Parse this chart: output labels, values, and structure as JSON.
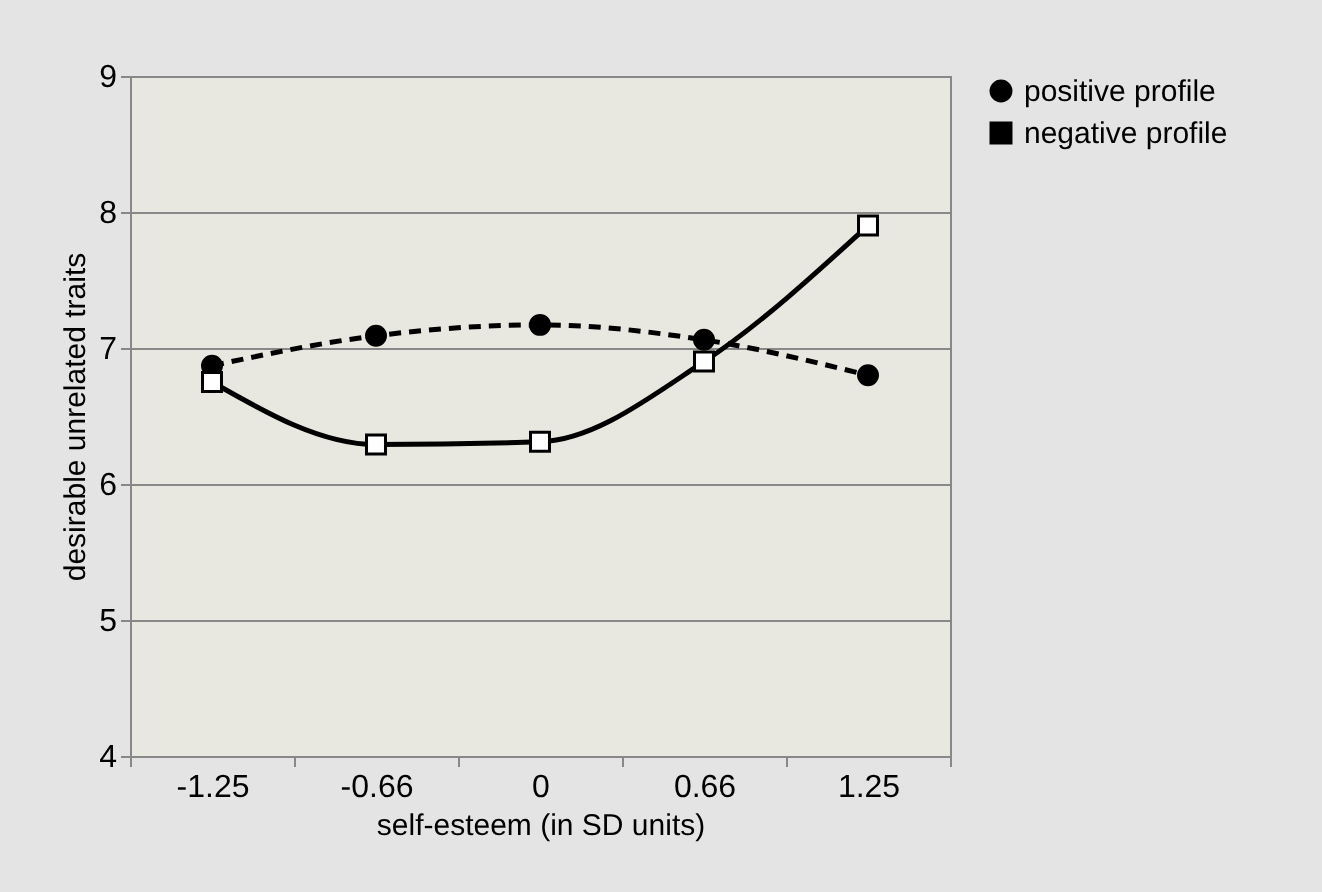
{
  "chart_data": {
    "type": "line",
    "xlabel": "self-esteem (in SD units)",
    "ylabel": "desirable unrelated traits",
    "categories": [
      "-1.25",
      "-0.66",
      "0",
      "0.66",
      "1.25"
    ],
    "series": [
      {
        "name": "positive profile",
        "color": "#000000",
        "marker": "circle",
        "line_style": "dashed",
        "values": [
          6.87,
          7.09,
          7.17,
          7.06,
          6.8
        ]
      },
      {
        "name": "negative profile",
        "color": "#000000",
        "marker": "square",
        "line_style": "solid",
        "values": [
          6.75,
          6.29,
          6.31,
          6.9,
          7.9
        ]
      }
    ],
    "ylim": [
      4,
      9
    ],
    "yticks": [
      4,
      5,
      6,
      7,
      8,
      9
    ],
    "grid": "y",
    "legend": "right"
  }
}
